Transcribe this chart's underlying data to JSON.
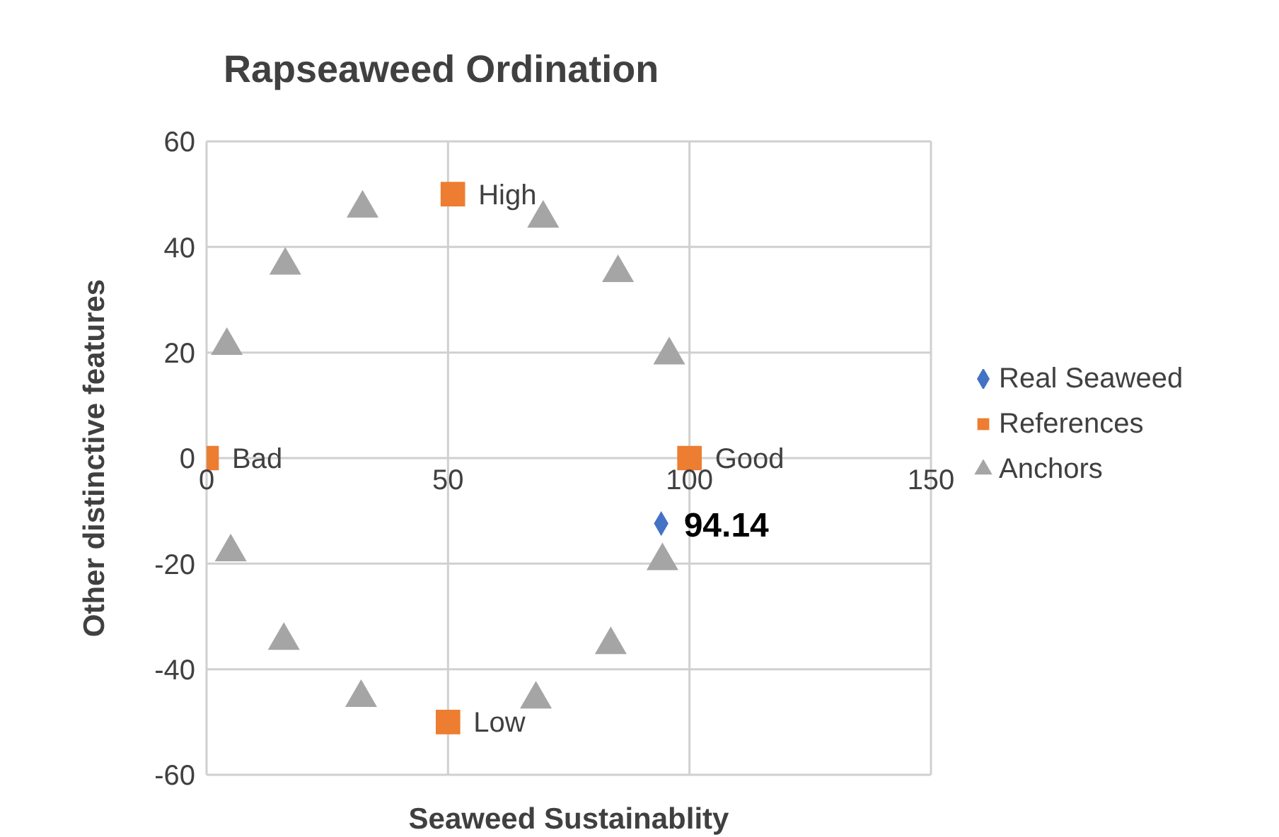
{
  "chart_data": {
    "type": "scatter",
    "title": "Rapseaweed Ordination",
    "xlabel": "Seaweed Sustainablity",
    "ylabel": "Other distinctive features",
    "xlim": [
      0,
      150
    ],
    "xticks": [
      0,
      50,
      100,
      150
    ],
    "ylim": [
      -60,
      60
    ],
    "yticks": [
      -60,
      -40,
      -20,
      0,
      20,
      40,
      60
    ],
    "grid": true,
    "legend": "right",
    "annotations": [
      {
        "text": "94.14",
        "x": 94.14,
        "y": -12.4
      }
    ],
    "series": [
      {
        "name": "Real Seaweed",
        "color": "#4472c4",
        "marker": "diamond",
        "x": [
          94.14
        ],
        "values": [
          -12.4
        ]
      },
      {
        "name": "References",
        "color": "#ed7d31",
        "marker": "square",
        "x": [
          0,
          100,
          51,
          50
        ],
        "values": [
          0,
          0,
          50,
          -50
        ],
        "value_labels": [
          "Bad",
          "Good",
          "High",
          "Low"
        ]
      },
      {
        "name": "Anchors",
        "color": "#a5a5a5",
        "marker": "triangle",
        "x": [
          4.2,
          16.3,
          32.3,
          69.7,
          85.2,
          95.8,
          94.4,
          83.7,
          68.2,
          32,
          16,
          5
        ],
        "values": [
          21.3,
          36.5,
          47.3,
          45.4,
          35.1,
          19.5,
          -19.5,
          -35.4,
          -45.7,
          -45.4,
          -34.6,
          -17.8
        ]
      }
    ]
  }
}
